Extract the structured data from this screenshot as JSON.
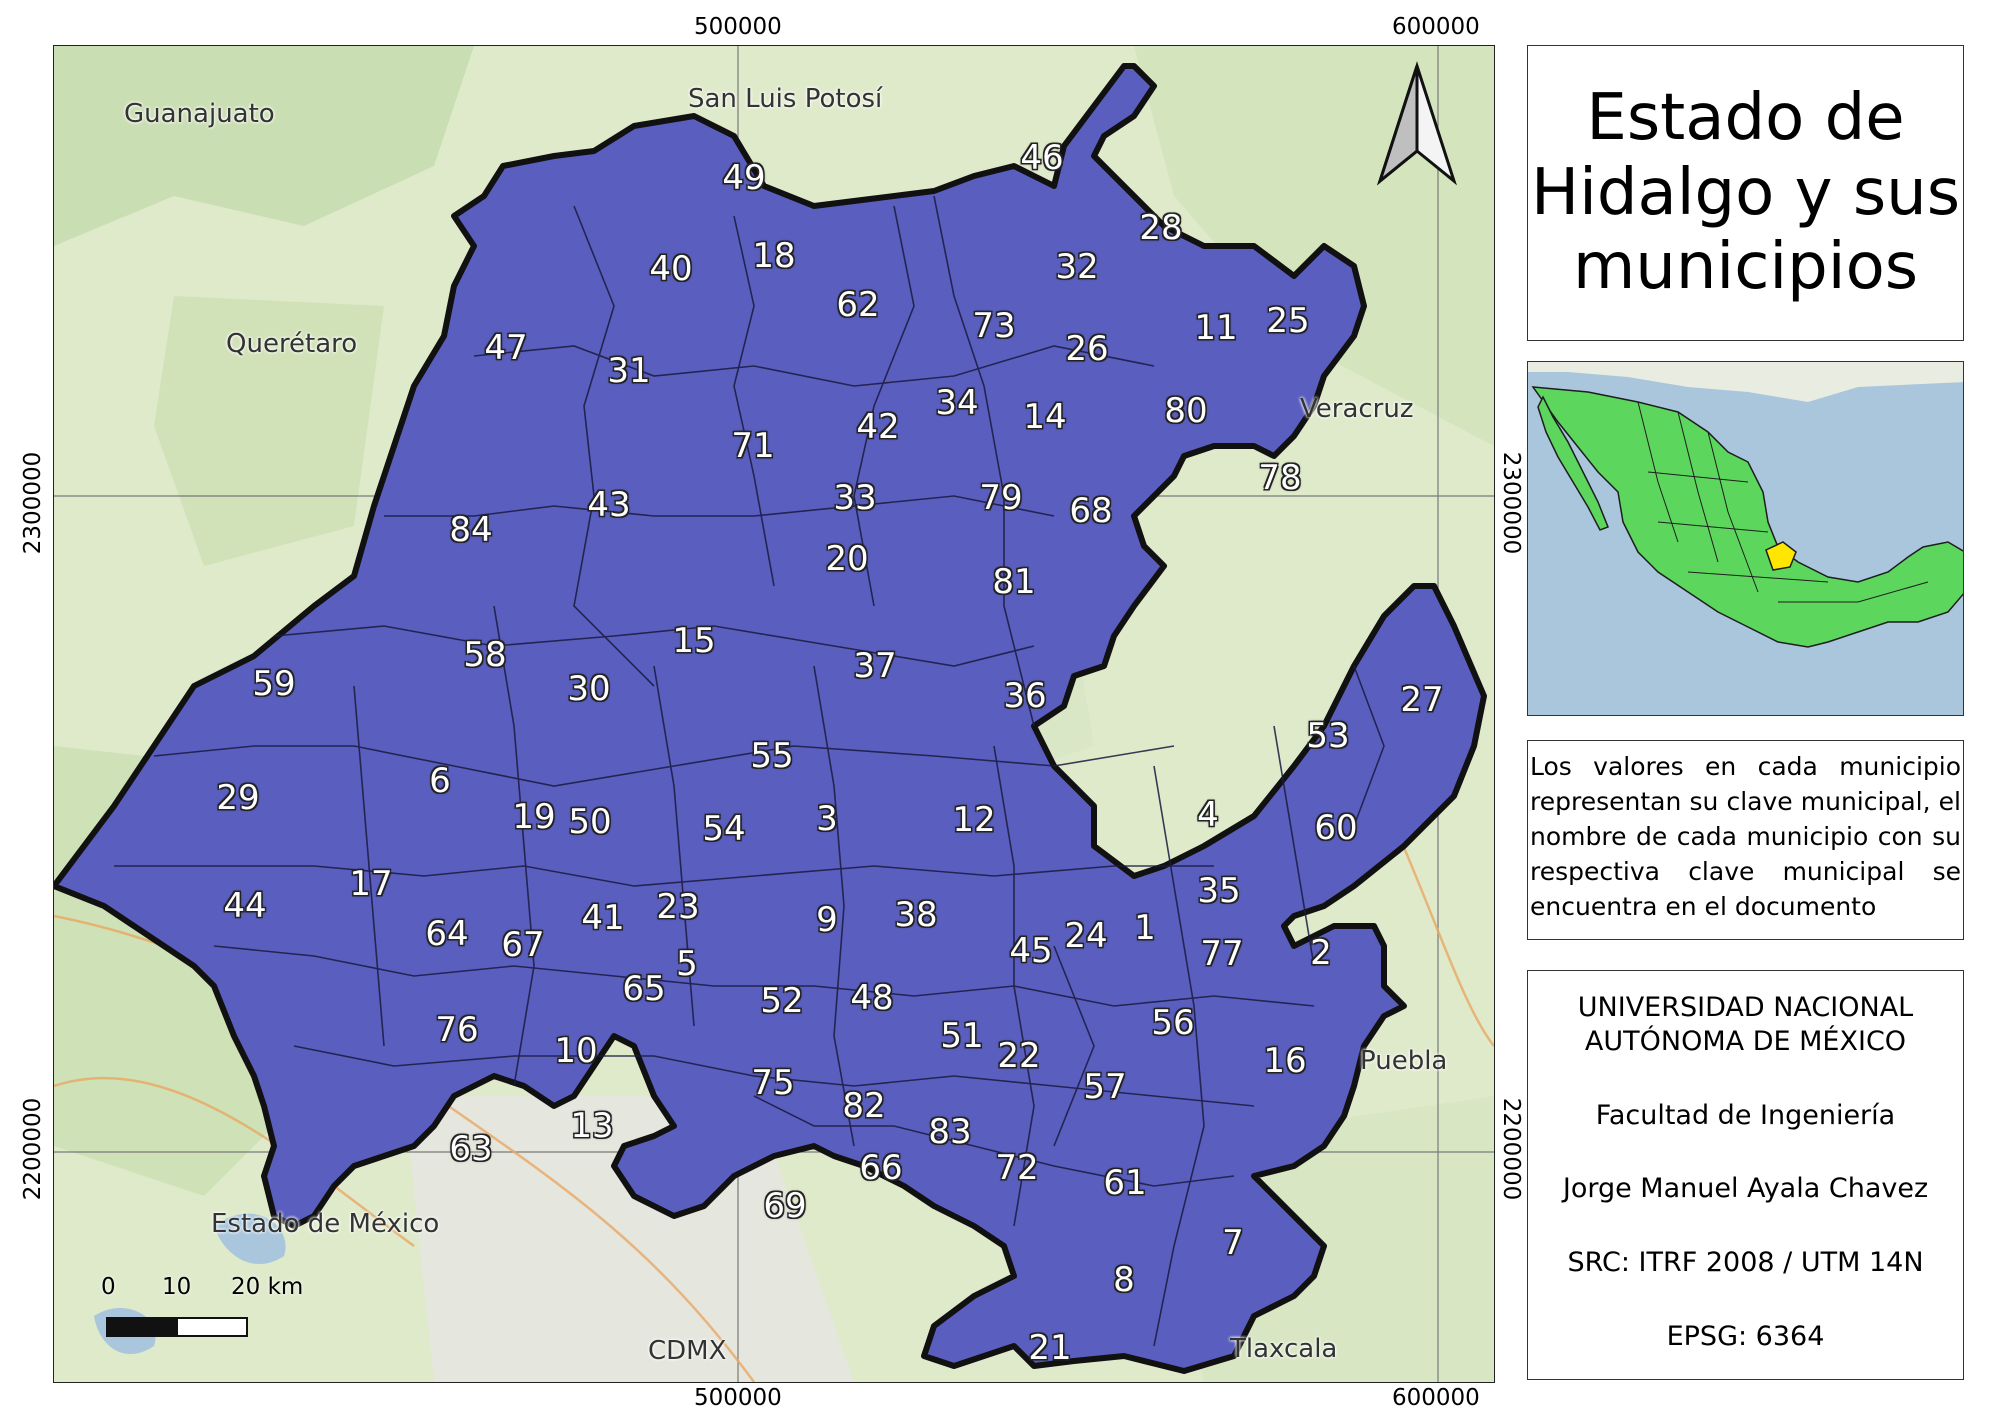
{
  "grid_ticks": {
    "top": [
      "500000",
      "600000"
    ],
    "bottom": [
      "500000",
      "600000"
    ],
    "left": [
      "2300000",
      "2200000"
    ],
    "right": [
      "2300000",
      "2200000"
    ]
  },
  "regions": {
    "guanajuato": "Guanajuato",
    "san_luis_potosi": "San Luis Potosí",
    "queretaro": "Querétaro",
    "veracruz": "Veracruz",
    "puebla": "Puebla",
    "estado_de_mexico": "Estado de México",
    "cdmx": "CDMX",
    "tlaxcala": "Tlaxcala"
  },
  "municipalities": [
    "49",
    "46",
    "28",
    "18",
    "40",
    "32",
    "62",
    "73",
    "11",
    "25",
    "47",
    "26",
    "31",
    "34",
    "14",
    "80",
    "42",
    "71",
    "78",
    "43",
    "33",
    "79",
    "68",
    "84",
    "20",
    "81",
    "15",
    "58",
    "37",
    "30",
    "59",
    "36",
    "27",
    "53",
    "55",
    "6",
    "29",
    "54",
    "3",
    "12",
    "19",
    "50",
    "4",
    "60",
    "17",
    "35",
    "23",
    "1",
    "44",
    "9",
    "38",
    "41",
    "24",
    "64",
    "67",
    "45",
    "2",
    "77",
    "5",
    "65",
    "52",
    "48",
    "56",
    "76",
    "10",
    "51",
    "22",
    "16",
    "75",
    "57",
    "82",
    "13",
    "83",
    "63",
    "66",
    "72",
    "61",
    "69",
    "7",
    "8",
    "21"
  ],
  "scale_bar": {
    "labels": [
      "0",
      "10",
      "20 km"
    ]
  },
  "title": [
    "Estado de",
    "Hidalgo y sus",
    "municipios"
  ],
  "note": "Los valores en cada municipio representan su clave municipal, el nombre de cada municipio con su respectiva clave municipal se encuentra en el documento",
  "info": {
    "university_line1": "UNIVERSIDAD NACIONAL",
    "university_line2": "AUTÓNOMA DE MÉXICO",
    "faculty": "Facultad de Ingeniería",
    "author": "Jorge Manuel Ayala Chavez",
    "src": "SRC: ITRF 2008 / UTM 14N",
    "epsg": "EPSG: 6364"
  },
  "colors": {
    "state_fill": "#5a5fbf",
    "state_outline": "#111111",
    "basemap": "#dfeacb",
    "inset_country": "#5cd65c",
    "inset_highlight": "#ffe600"
  }
}
